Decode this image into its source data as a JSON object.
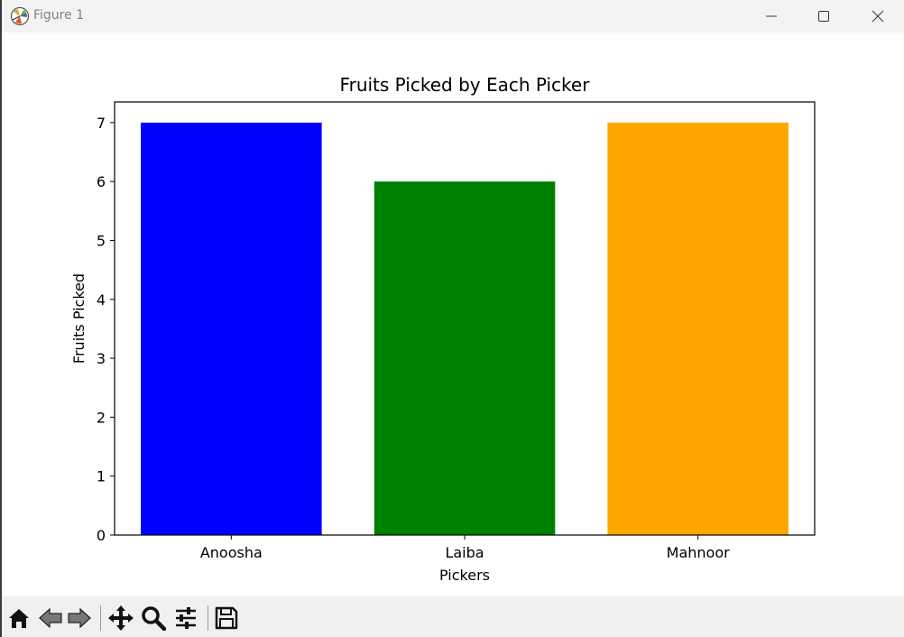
{
  "window": {
    "title": "Figure 1"
  },
  "chart_data": {
    "type": "bar",
    "title": "Fruits Picked by Each Picker",
    "xlabel": "Pickers",
    "ylabel": "Fruits Picked",
    "categories": [
      "Anoosha",
      "Laiba",
      "Mahnoor"
    ],
    "values": [
      7,
      6,
      7
    ],
    "colors": [
      "#0000ff",
      "#008000",
      "#ffa500"
    ],
    "yticks": [
      "0",
      "1",
      "2",
      "3",
      "4",
      "5",
      "6",
      "7"
    ],
    "ylim": [
      0,
      7.35
    ],
    "grid": false
  },
  "toolbar": {
    "tools": [
      {
        "name": "home-icon"
      },
      {
        "name": "back-icon"
      },
      {
        "name": "forward-icon"
      },
      {
        "name": "pan-icon"
      },
      {
        "name": "zoom-icon"
      },
      {
        "name": "configure-subplots-icon"
      },
      {
        "name": "save-icon"
      }
    ]
  }
}
